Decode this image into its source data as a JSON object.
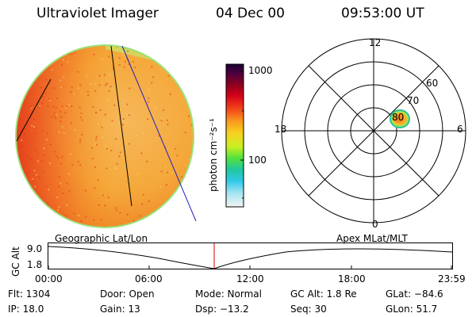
{
  "header": {
    "instrument": "Ultraviolet Imager",
    "date": "04 Dec 00",
    "time": "09:53:00 UT"
  },
  "colorbar": {
    "unit_label": "photon cm⁻²s⁻¹",
    "ticks": [
      "1000",
      "100"
    ]
  },
  "polar": {
    "mlt_labels": {
      "top": "12",
      "left": "18",
      "right": "6",
      "bottom": "0"
    },
    "lat_labels": [
      "60",
      "70",
      "80"
    ]
  },
  "timeline": {
    "left_label": "Geographic Lat/Lon",
    "right_label": "Apex  MLat/MLT",
    "axis_label": "GC Alt",
    "y_ticks": [
      "9.0",
      "1.8"
    ],
    "x_ticks": [
      "00:00",
      "06:00",
      "12:00",
      "18:00",
      "23:59"
    ]
  },
  "info": {
    "flt": "Flt: 1304",
    "ip": "IP: 18.0",
    "door": "Door: Open",
    "gain": "Gain: 13",
    "mode": "Mode: Normal",
    "dsp": "Dsp:  −13.2",
    "gc_alt": "GC Alt: 1.8 Re",
    "seq": "Seq: 30",
    "glat": "GLat:  −84.6",
    "glon": "GLon:  51.7"
  },
  "colors": {
    "disk_main": "#f5a623",
    "disk_hot": "#e8361c",
    "limb": "#7ed957",
    "track_black": "#000000",
    "track_blue": "#2020c0",
    "marker_red": "#e00000",
    "hotspot_core": "#f7b030",
    "hotspot_ring": "#28c0a0"
  }
}
